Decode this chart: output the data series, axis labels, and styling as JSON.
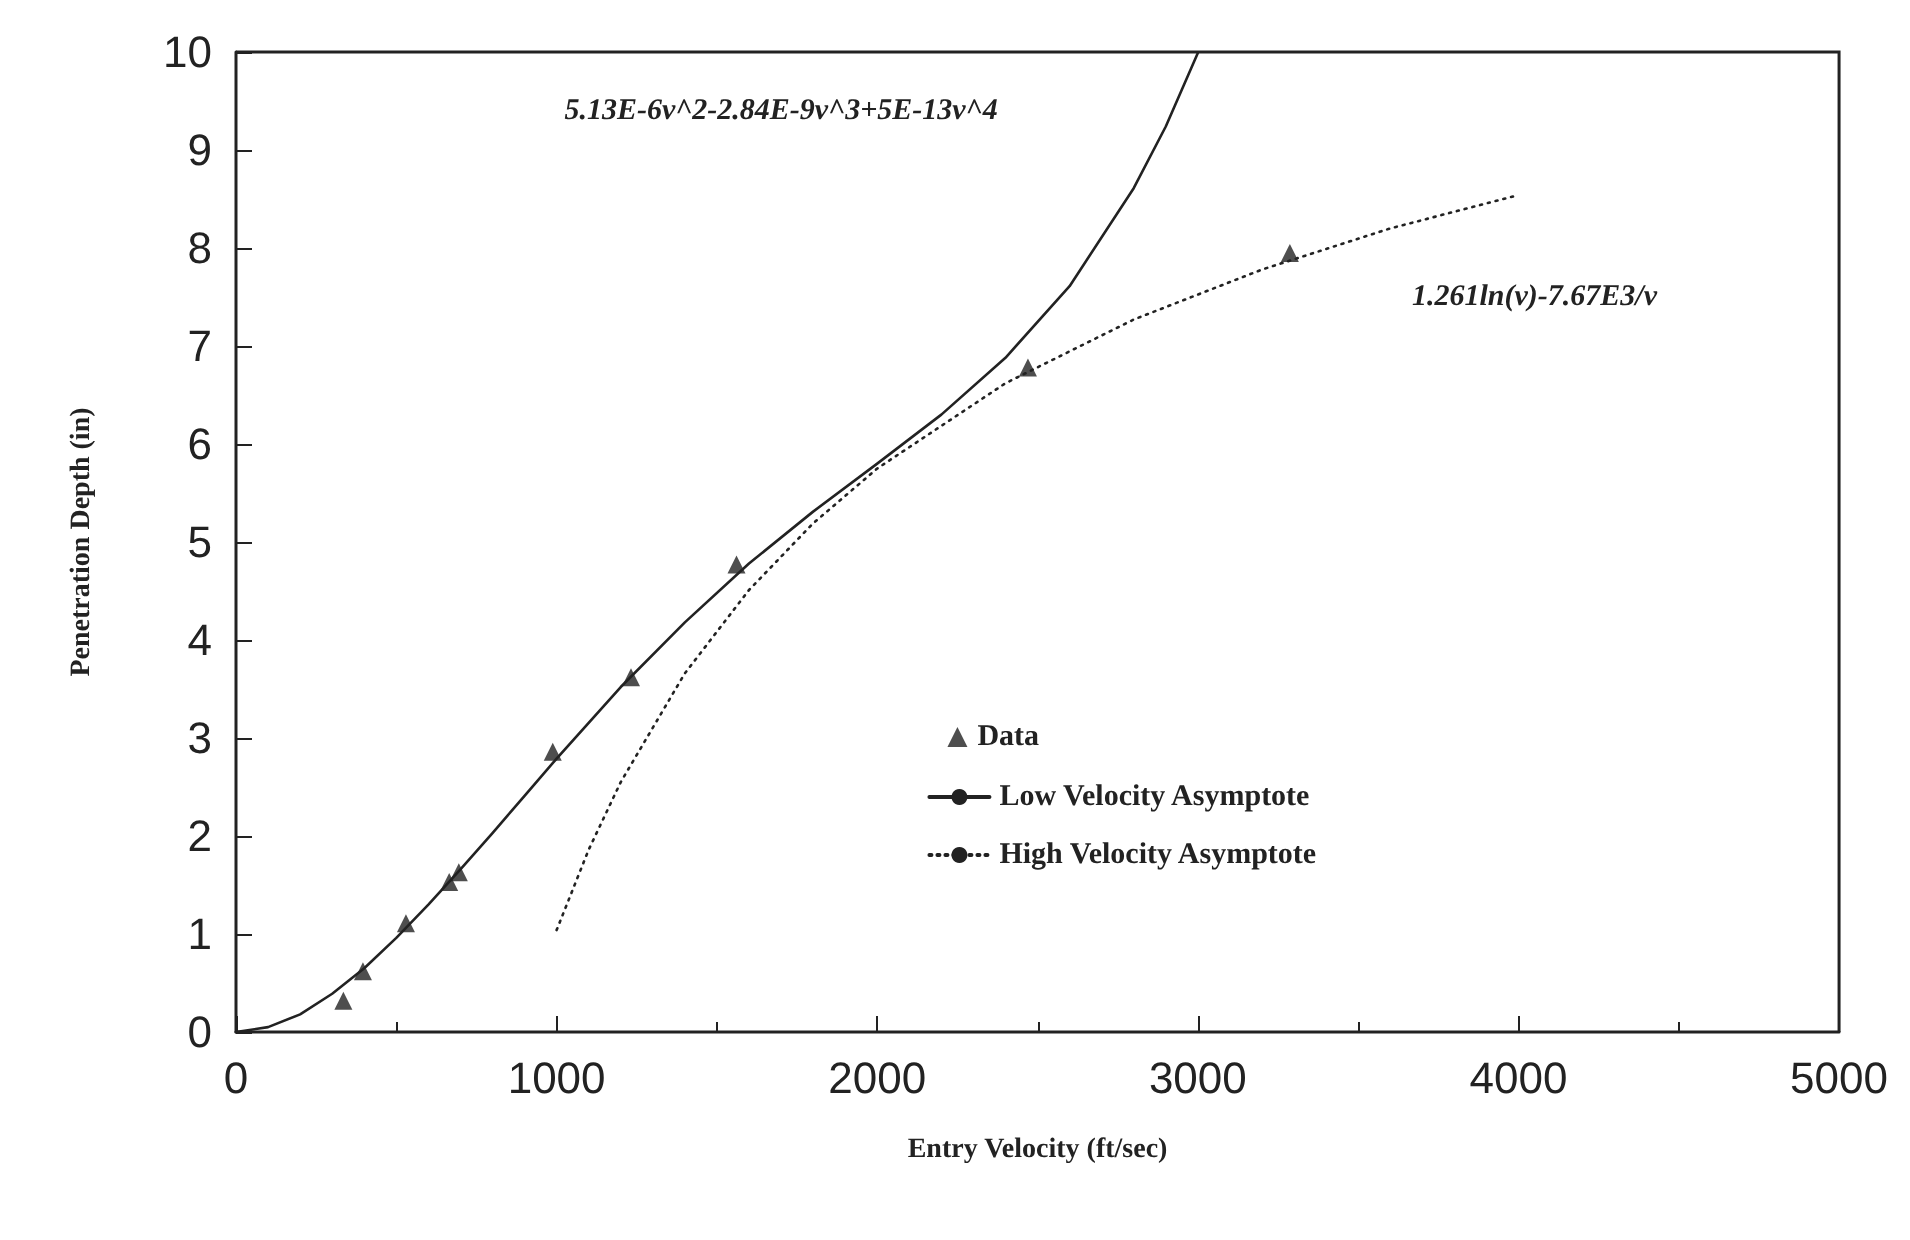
{
  "chart_data": {
    "type": "scatter",
    "xlabel": "Entry Velocity (ft/sec)",
    "ylabel": "Penetration Depth (in)",
    "xlim": [
      0,
      5000
    ],
    "xticks": [
      0,
      1000,
      2000,
      3000,
      4000,
      5000
    ],
    "ylim": [
      0,
      10
    ],
    "yticks": [
      0,
      1,
      2,
      3,
      4,
      5,
      6,
      7,
      8,
      9,
      10
    ],
    "grid": false,
    "legend": "center",
    "annotations": [
      "5.13E-6v^2-2.84E-9v^3+5E-13v^4",
      "1.261ln(v)-7.67E3/v"
    ],
    "series": [
      {
        "name": "Data",
        "marker": "triangle",
        "color": "#222222",
        "x": [
          335,
          396,
          530,
          665,
          695,
          988,
          1232,
          1561,
          2470,
          3287
        ],
        "values": [
          0.32,
          0.62,
          1.11,
          1.53,
          1.63,
          2.86,
          3.62,
          4.77,
          6.78,
          7.95
        ]
      },
      {
        "name": "Low Velocity Asymptote",
        "type": "line",
        "marker": "none",
        "line_style": "solid",
        "color": "#222222",
        "x": [
          0,
          100,
          200,
          300,
          400,
          500,
          600,
          700,
          800,
          900,
          1000,
          1200,
          1400,
          1600,
          1800,
          2000,
          2200,
          2400,
          2600,
          2800,
          2900,
          3000
        ],
        "values": [
          0,
          0.05,
          0.18,
          0.39,
          0.65,
          0.96,
          1.3,
          1.66,
          2.03,
          2.41,
          2.79,
          3.52,
          4.18,
          4.78,
          5.31,
          5.8,
          6.3,
          6.88,
          7.61,
          8.61,
          9.24,
          9.99
        ]
      },
      {
        "name": "High Velocity Asymptote",
        "type": "line",
        "marker": "none",
        "line_style": "dotted",
        "color": "#222222",
        "x": [
          1000,
          1100,
          1200,
          1400,
          1600,
          1800,
          2000,
          2400,
          2800,
          3200,
          3600,
          4000
        ],
        "values": [
          1.04,
          1.86,
          2.55,
          3.66,
          4.51,
          5.19,
          5.75,
          6.62,
          7.27,
          7.78,
          8.2,
          8.54
        ]
      }
    ]
  }
}
